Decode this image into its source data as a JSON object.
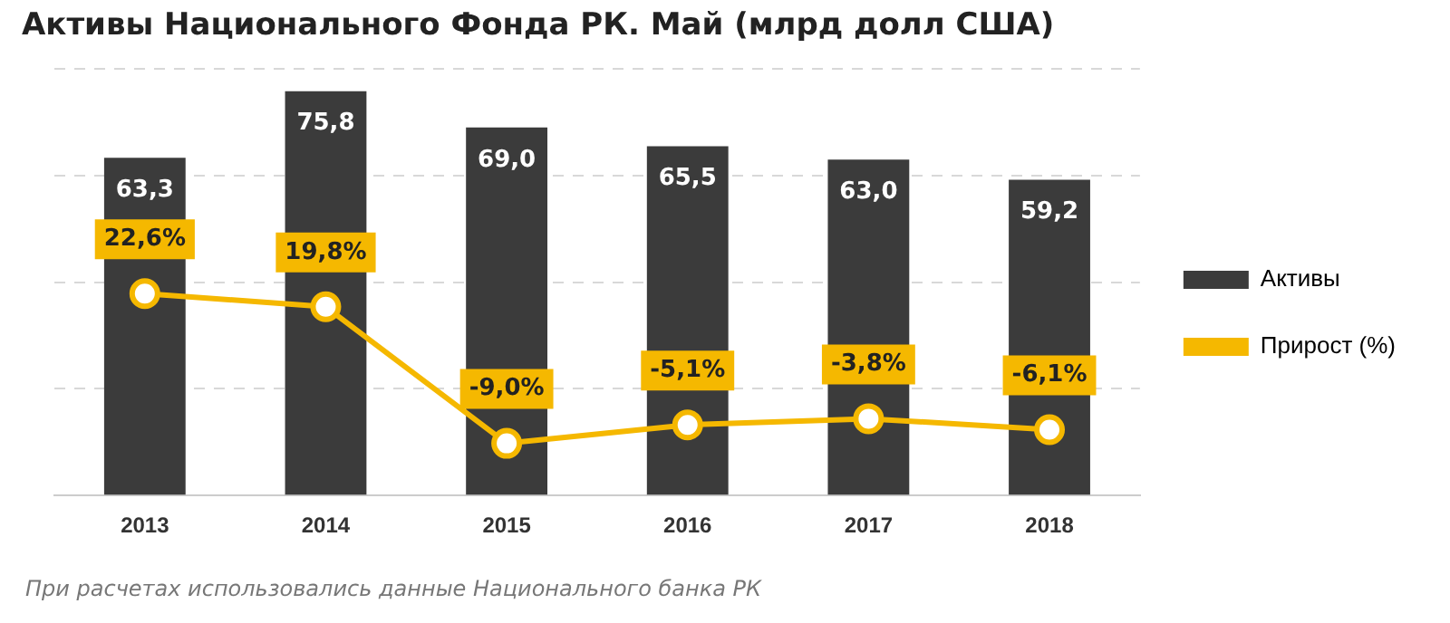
{
  "chart_data": {
    "type": "bar",
    "title": "Активы Национального Фонда РК. Май (млрд долл США)",
    "categories": [
      "2013",
      "2014",
      "2015",
      "2016",
      "2017",
      "2018"
    ],
    "series": [
      {
        "name": "Активы",
        "color": "#3b3b3b",
        "values": [
          63.3,
          75.8,
          69.0,
          65.5,
          63.0,
          59.2
        ],
        "value_labels": [
          "63,3",
          "75,8",
          "69,0",
          "65,5",
          "63,0",
          "59,2"
        ]
      },
      {
        "name": "Прирост (%)",
        "type": "line",
        "axis": "y2",
        "color": "#f5b800",
        "values": [
          22.6,
          19.8,
          -9.0,
          -5.1,
          -3.8,
          -6.1
        ],
        "value_labels": [
          "22,6%",
          "19,8%",
          "-9,0%",
          "-5,1%",
          "-3,8%",
          "-6,1%"
        ]
      }
    ],
    "ylim": [
      0,
      80
    ],
    "yticks": [
      {
        "value": 0,
        "label": null
      },
      {
        "value": 20,
        "label": null
      },
      {
        "value": 40,
        "label": null
      },
      {
        "value": 60,
        "label": null
      },
      {
        "value": 80,
        "label": null
      }
    ],
    "y2lim": [
      -20,
      70
    ],
    "grid": "y",
    "tick_labels": "x",
    "legend": "right",
    "marker": "circle",
    "line_style": "solid",
    "annotations": [
      "При расчетах использовались данные Национального  банка РК"
    ]
  }
}
